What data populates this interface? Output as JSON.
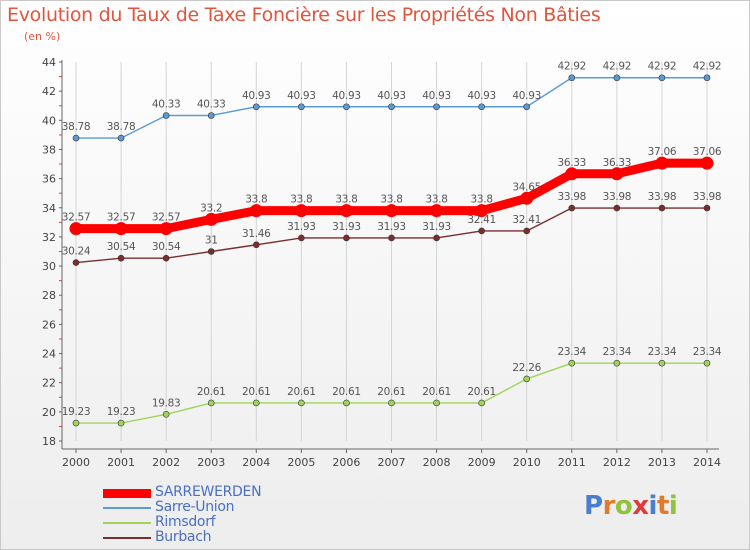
{
  "header": {
    "title": "Evolution du Taux de Taxe Foncière sur les Propriétés Non Bâties",
    "subtitle": "(en %)"
  },
  "logo": {
    "letters": [
      "P",
      "r",
      "o",
      "x",
      "i",
      "t",
      "i"
    ],
    "colors": [
      "#4a7fcf",
      "#e27a2c",
      "#8fc23e",
      "#e03a3a",
      "#4a7fcf",
      "#e27a2c",
      "#8fc23e"
    ]
  },
  "chart_data": {
    "type": "line",
    "title": "Evolution du Taux de Taxe Foncière sur les Propriétés Non Bâties",
    "ylabel": "(en %)",
    "xlabel": "",
    "x": [
      "2000",
      "2001",
      "2002",
      "2003",
      "2004",
      "2005",
      "2006",
      "2007",
      "2008",
      "2009",
      "2010",
      "2011",
      "2012",
      "2013",
      "2014"
    ],
    "ylim": [
      18,
      44
    ],
    "yticks": [
      18,
      20,
      22,
      24,
      26,
      28,
      30,
      32,
      34,
      36,
      38,
      40,
      42,
      44
    ],
    "grid": "vertical",
    "legend_position": "bottom-left",
    "series": [
      {
        "name": "SARREWERDEN",
        "color": "#ff0000",
        "emphasis": true,
        "values": [
          32.57,
          32.57,
          32.57,
          33.2,
          33.8,
          33.8,
          33.8,
          33.8,
          33.8,
          33.8,
          34.65,
          36.33,
          36.33,
          37.06,
          37.06
        ],
        "labels": [
          "32.57",
          "32.57",
          "32.57",
          "33.2",
          "33.8",
          "33.8",
          "33.8",
          "33.8",
          "33.8",
          "33.8",
          "34.65",
          "36.33",
          "36.33",
          "37.06",
          "37.06"
        ]
      },
      {
        "name": "Sarre-Union",
        "color": "#5b9bd5",
        "emphasis": false,
        "values": [
          38.78,
          38.78,
          40.33,
          40.33,
          40.93,
          40.93,
          40.93,
          40.93,
          40.93,
          40.93,
          40.93,
          42.92,
          42.92,
          42.92,
          42.92
        ],
        "labels": [
          "38.78",
          "38.78",
          "40.33",
          "40.33",
          "40.93",
          "40.93",
          "40.93",
          "40.93",
          "40.93",
          "40.93",
          "40.93",
          "42.92",
          "42.92",
          "42.92",
          "42.92"
        ]
      },
      {
        "name": "Rimsdorf",
        "color": "#9ed45a",
        "emphasis": false,
        "values": [
          19.23,
          19.23,
          19.83,
          20.61,
          20.61,
          20.61,
          20.61,
          20.61,
          20.61,
          20.61,
          22.26,
          23.34,
          23.34,
          23.34,
          23.34
        ],
        "labels": [
          "19.23",
          "19.23",
          "19.83",
          "20.61",
          "20.61",
          "20.61",
          "20.61",
          "20.61",
          "20.61",
          "20.61",
          "22.26",
          "23.34",
          "23.34",
          "23.34",
          "23.34"
        ]
      },
      {
        "name": "Burbach",
        "color": "#7b2e2e",
        "emphasis": false,
        "values": [
          30.24,
          30.54,
          30.54,
          31,
          31.46,
          31.93,
          31.93,
          31.93,
          31.93,
          32.41,
          32.41,
          33.98,
          33.98,
          33.98,
          33.98
        ],
        "labels": [
          "30.24",
          "30.54",
          "30.54",
          "31",
          "31.46",
          "31.93",
          "31.93",
          "31.93",
          "31.93",
          "32.41",
          "32.41",
          "33.98",
          "33.98",
          "33.98",
          "33.98"
        ]
      }
    ]
  }
}
